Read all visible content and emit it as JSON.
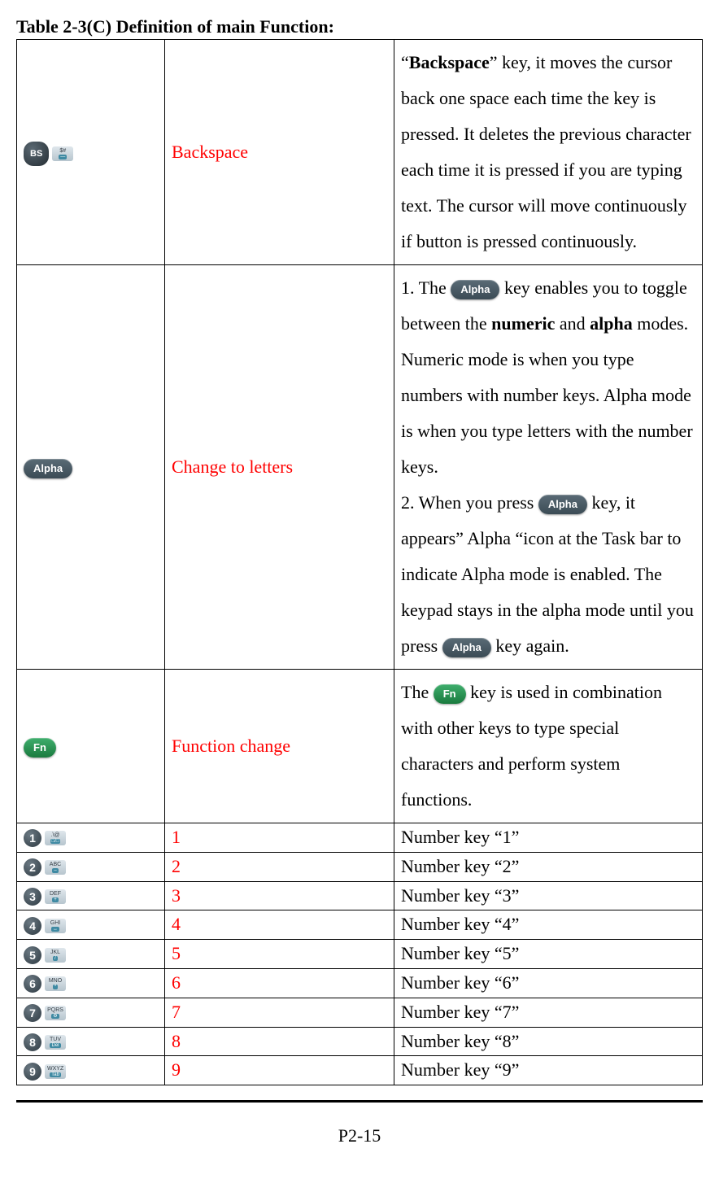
{
  "title": "Table 2-3(C) Definition of main Function:",
  "pageNumber": "P2-15",
  "keys": {
    "bs": "BS",
    "bs_side_top": "$#",
    "bs_side_bot": "—",
    "alpha": "Alpha",
    "fn": "Fn"
  },
  "rows": {
    "backspace": {
      "name": "Backspace",
      "desc_pre": "“",
      "desc_keyword": "Backspace",
      "desc_post": "” key, it moves the cursor back one space each time the key is pressed. It deletes the previous character each time it is pressed if you are typing text. The cursor will move continuously if button is pressed continuously."
    },
    "alpha": {
      "name": "Change to letters",
      "p1a": "1. The ",
      "p1b": " key enables you to toggle between the ",
      "p1_numeric": "numeric",
      "p1_and": " and ",
      "p1_alpha": "alpha",
      "p1c": " modes. Numeric mode is when you type numbers with number keys. Alpha mode is when you type letters with the number keys.",
      "p2a": "2. When you press ",
      "p2b": " key, it appears” Alpha “icon at the Task bar to indicate Alpha mode is enabled. The keypad stays in the alpha mode until you press ",
      "p2c": " key again."
    },
    "fn": {
      "name": "Function change",
      "a": "The ",
      "b": " key is used in combination with other keys to type special characters and perform system functions."
    },
    "num": [
      {
        "d": "1",
        "t": ".\\@",
        "u": "□/□",
        "name": "1",
        "desc": "Number key “1”"
      },
      {
        "d": "2",
        "t": "ABC",
        "u": "–",
        "name": "2",
        "desc": "Number key “2”"
      },
      {
        "d": "3",
        "t": "DEF",
        "u": "+",
        "name": "3",
        "desc": "Number key “3”"
      },
      {
        "d": "4",
        "t": "GHI",
        "u": "↔",
        "name": "4",
        "desc": "Number key “4”"
      },
      {
        "d": "5",
        "t": "JKL",
        "u": "/",
        "name": "5",
        "desc": "Number key “5”"
      },
      {
        "d": "6",
        "t": "MNO",
        "u": "*",
        "name": "6",
        "desc": "Number key “6”"
      },
      {
        "d": "7",
        "t": "PQRS",
        "u": "⚙",
        "name": "7",
        "desc": "Number key “7”"
      },
      {
        "d": "8",
        "t": "TUV",
        "u": "Del",
        "name": "8",
        "desc": "Number key “8”"
      },
      {
        "d": "9",
        "t": "WXYZ",
        "u": "Tab",
        "name": "9",
        "desc": "Number key “9”"
      }
    ]
  }
}
